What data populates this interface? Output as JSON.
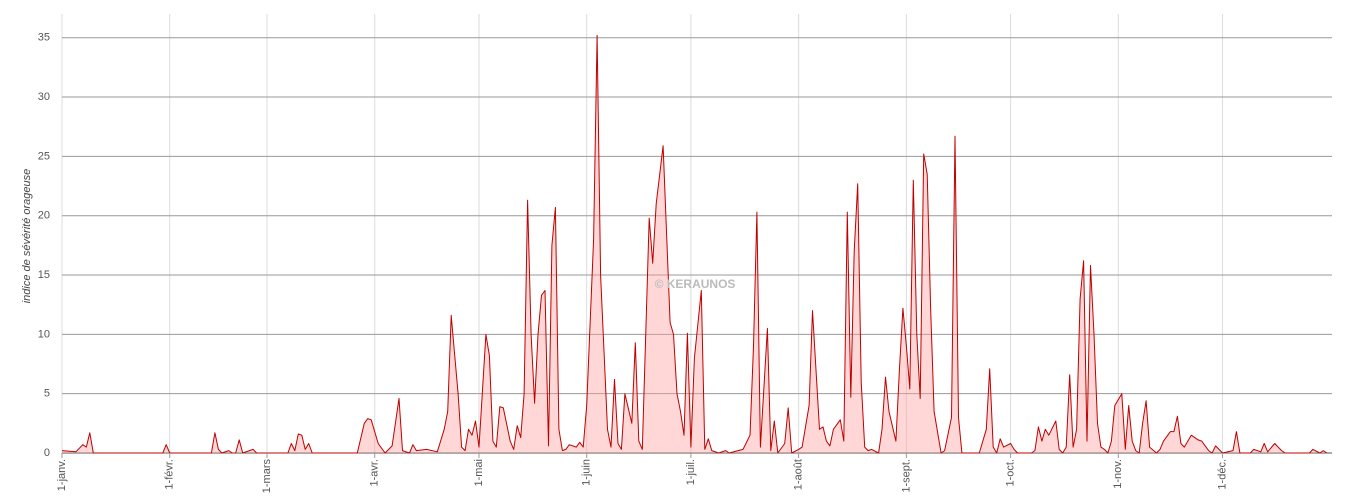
{
  "chart_data": {
    "type": "area",
    "y_label": "indice de sévérité orageuse",
    "watermark": "© KERAUNOS",
    "color": "#c00000",
    "fill": "#ff9a9a",
    "grid": true,
    "x": [
      0,
      4,
      6,
      7,
      8,
      9,
      29,
      30,
      31,
      43,
      44,
      45,
      46,
      48,
      49,
      50,
      51,
      52,
      55,
      56,
      65,
      66,
      67,
      68,
      69,
      70,
      71,
      72,
      85,
      87,
      88,
      89,
      91,
      93,
      95,
      97,
      98,
      100,
      101,
      102,
      105,
      108,
      110,
      111,
      112,
      114,
      115,
      116,
      117,
      118,
      119,
      120,
      122,
      123,
      124,
      125,
      126,
      127,
      129,
      130,
      131,
      132,
      133,
      134,
      135,
      136,
      137,
      138,
      139,
      140,
      141,
      142,
      143,
      144,
      145,
      146,
      148,
      149,
      150,
      151,
      153,
      154,
      155,
      157,
      158,
      159,
      160,
      161,
      162,
      164,
      165,
      166,
      167,
      169,
      170,
      171,
      173,
      175,
      176,
      177,
      178,
      179,
      180,
      181,
      182,
      184,
      185,
      186,
      187,
      189,
      191,
      192,
      196,
      198,
      199,
      200,
      201,
      203,
      204,
      205,
      206,
      208,
      209,
      210,
      212,
      213,
      215,
      216,
      218,
      219,
      220,
      221,
      222,
      224,
      225,
      226,
      227,
      228,
      229,
      230,
      231,
      232,
      233,
      235,
      236,
      237,
      238,
      240,
      241,
      242,
      243,
      244,
      245,
      246,
      247,
      248,
      249,
      250,
      251,
      253,
      254,
      256,
      257,
      258,
      259,
      264,
      266,
      267,
      268,
      269,
      270,
      271,
      273,
      274,
      275,
      279,
      280,
      281,
      282,
      283,
      284,
      286,
      287,
      288,
      289,
      290,
      291,
      292,
      293,
      294,
      295,
      296,
      297,
      298,
      299,
      300,
      301,
      302,
      303,
      305,
      306,
      307,
      308,
      309,
      310,
      311,
      312,
      313,
      315,
      316,
      317,
      319,
      320,
      321,
      322,
      323,
      324,
      325,
      327,
      328,
      329,
      330,
      331,
      332,
      334,
      337,
      338,
      339,
      342,
      343,
      345,
      346,
      347,
      349,
      351,
      352,
      359,
      360,
      362,
      363,
      364
    ],
    "values": [
      0.2,
      0.1,
      0.7,
      0.5,
      1.7,
      0,
      0,
      0.7,
      0,
      0,
      1.7,
      0.3,
      0,
      0.2,
      0,
      0,
      1.1,
      0,
      0.3,
      0,
      0,
      0.8,
      0.2,
      1.6,
      1.5,
      0.3,
      0.8,
      0,
      0,
      2.5,
      2.9,
      2.8,
      0.8,
      0,
      0.6,
      4.6,
      0.2,
      0,
      0.7,
      0.2,
      0.3,
      0.1,
      2,
      3.5,
      11.6,
      5,
      0.5,
      0.2,
      2,
      1.5,
      2.7,
      0.5,
      10,
      8.2,
      1,
      0.5,
      3.9,
      3.8,
      1,
      0.3,
      2.3,
      1.3,
      5,
      21.3,
      10,
      4.2,
      10,
      13.3,
      13.7,
      0.6,
      17.5,
      20.7,
      2,
      0.2,
      0.3,
      0.7,
      0.5,
      0.9,
      0.5,
      4,
      18,
      35.2,
      15,
      2,
      0.5,
      6.2,
      0.8,
      0.3,
      5,
      2.5,
      9.3,
      1,
      0.3,
      19.8,
      16,
      21,
      25.9,
      11,
      10,
      5,
      3.5,
      1.5,
      10.1,
      0.5,
      8,
      13.7,
      0.3,
      1.2,
      0.2,
      0,
      0.2,
      0,
      0.3,
      1.5,
      9,
      20.3,
      0.5,
      10.5,
      0.2,
      2.7,
      0,
      0.8,
      3.8,
      0,
      0.3,
      0.5,
      4,
      12,
      2,
      2.2,
      1,
      0.6,
      2,
      2.8,
      1,
      20.3,
      4.7,
      17,
      22.7,
      6,
      0.5,
      0.2,
      0.3,
      0,
      2,
      6.4,
      3.5,
      1,
      7,
      12.2,
      9,
      5.4,
      23,
      10,
      4.6,
      25.2,
      23.5,
      12,
      3.5,
      0,
      0.2,
      3,
      26.7,
      3,
      0,
      0,
      2,
      7.1,
      0.5,
      0,
      1.2,
      0.5,
      0.8,
      0.3,
      0,
      0,
      0.2,
      2.2,
      1,
      2,
      1.5,
      2.7,
      0.3,
      0,
      0.5,
      6.6,
      0.5,
      2,
      13,
      16.2,
      1,
      15.8,
      10,
      2.5,
      0.5,
      0.3,
      0,
      1,
      4,
      5,
      0.3,
      4,
      1,
      0.2,
      0,
      2.5,
      4.4,
      0.5,
      0,
      0.3,
      1,
      1.8,
      1.8,
      3.1,
      0.8,
      0.5,
      1,
      1.5,
      1.1,
      1,
      0.6,
      0.2,
      0,
      0.6,
      0,
      0.2,
      1.8,
      0,
      0,
      0.3,
      0.1,
      0.8,
      0.1,
      0.8,
      0.2,
      0,
      0,
      0.3,
      0,
      0.2,
      0
    ],
    "xlim": [
      0,
      365.5
    ],
    "xticks": [
      {
        "value": 0,
        "label": "1-janv."
      },
      {
        "value": 31,
        "label": "1-févr."
      },
      {
        "value": 59,
        "label": "1-mars"
      },
      {
        "value": 90,
        "label": "1-avr."
      },
      {
        "value": 120,
        "label": "1-mai"
      },
      {
        "value": 151,
        "label": "1-juin"
      },
      {
        "value": 181,
        "label": "1-juil."
      },
      {
        "value": 212,
        "label": "1-août"
      },
      {
        "value": 243,
        "label": "1-sept."
      },
      {
        "value": 273,
        "label": "1-oct."
      },
      {
        "value": 304,
        "label": "1-nov."
      },
      {
        "value": 334,
        "label": "1-déc."
      }
    ],
    "ylim": [
      0,
      37
    ],
    "yticks": [
      0,
      5,
      10,
      15,
      20,
      25,
      30,
      35
    ]
  }
}
